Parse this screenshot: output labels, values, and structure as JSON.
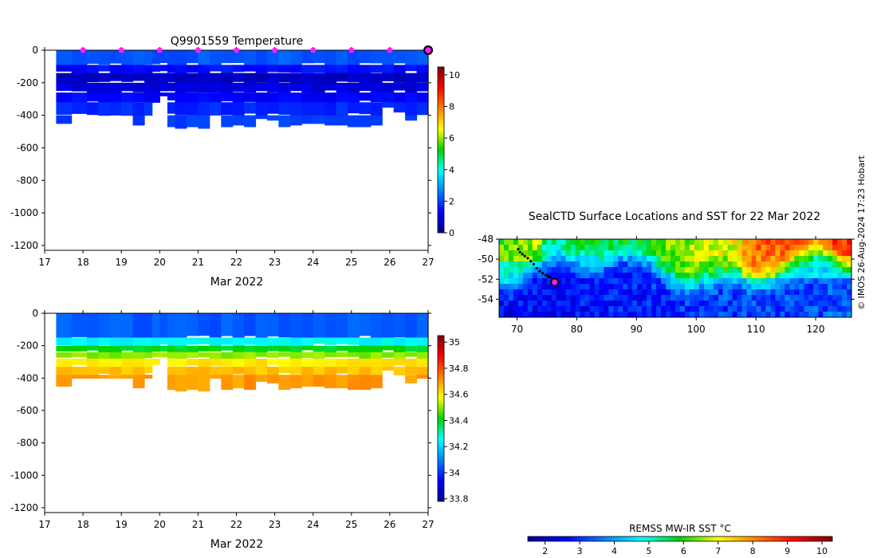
{
  "credit": "© IMOS 26-Aug-2024 17:23 Hobart",
  "profile_panels": {
    "temperature": {
      "title": "Q9901559  Temperature",
      "xlabel": "Mar 2022",
      "x_ticks": [
        "17",
        "18",
        "19",
        "20",
        "21",
        "22",
        "23",
        "24",
        "25",
        "26",
        "27"
      ],
      "y_ticks": [
        "0",
        "-200",
        "-400",
        "-600",
        "-800",
        "-1000",
        "-1200"
      ],
      "colorbar_ticks": [
        "10",
        "8",
        "6",
        "4",
        "2",
        "0"
      ],
      "colorbar_range": [
        0,
        10.5
      ],
      "surface_marker_days": [
        18,
        19,
        20,
        21,
        22,
        23,
        24,
        25,
        26
      ],
      "latest_marker_day": 27,
      "marker_color": "#ff1aff"
    },
    "salinity": {
      "xlabel": "Mar 2022",
      "x_ticks": [
        "17",
        "18",
        "19",
        "20",
        "21",
        "22",
        "23",
        "24",
        "25",
        "26",
        "27"
      ],
      "y_ticks": [
        "0",
        "-200",
        "-400",
        "-600",
        "-800",
        "-1000",
        "-1200"
      ],
      "colorbar_ticks": [
        "35",
        "34.8",
        "34.6",
        "34.4",
        "34.2",
        "34",
        "33.8"
      ],
      "colorbar_range": [
        33.78,
        35.05
      ]
    }
  },
  "map_panel": {
    "title": "SealCTD Surface Locations and SST for 22 Mar 2022",
    "lat_ticks": [
      "-48",
      "-50",
      "-52",
      "-54"
    ],
    "lon_ticks": [
      "70",
      "80",
      "90",
      "100",
      "110",
      "120"
    ],
    "current_position_color": "#ff1aff"
  },
  "sst_colorbar": {
    "label": "REMSS MW-IR SST °C",
    "ticks": [
      "2",
      "3",
      "4",
      "5",
      "6",
      "7",
      "8",
      "9",
      "10"
    ],
    "range": [
      1.5,
      10.3
    ]
  },
  "chart_data": [
    {
      "type": "heatmap",
      "title": "Q9901559  Temperature",
      "xlabel": "Mar 2022",
      "ylabel": "",
      "xlim": [
        17,
        27
      ],
      "ylim": [
        -1230,
        0
      ],
      "value_range": [
        0,
        10.5
      ],
      "value_unit": "°C",
      "profile_days": [
        17.3,
        17.7,
        18.1,
        18.4,
        18.7,
        19.0,
        19.3,
        19.6,
        19.8,
        20.0,
        20.2,
        20.4,
        20.7,
        21.0,
        21.3,
        21.6,
        21.9,
        22.2,
        22.5,
        22.8,
        23.1,
        23.4,
        23.7,
        24.0,
        24.3,
        24.6,
        24.9,
        25.2,
        25.5,
        25.8,
        26.1,
        26.4,
        26.7
      ],
      "profile_max_depths": [
        450,
        400,
        400,
        400,
        400,
        400,
        460,
        400,
        320,
        280,
        470,
        480,
        470,
        480,
        400,
        470,
        460,
        470,
        420,
        430,
        470,
        460,
        450,
        450,
        460,
        460,
        470,
        470,
        460,
        350,
        380,
        430,
        400
      ],
      "surface_value": 2.2,
      "layers": [
        {
          "depth_to": 90,
          "value": 2.2
        },
        {
          "depth_to": 140,
          "value": 1.4
        },
        {
          "depth_to": 200,
          "value": 0.6
        },
        {
          "depth_to": 260,
          "value": 0.9
        },
        {
          "depth_to": 320,
          "value": 1.3
        },
        {
          "depth_to": 400,
          "value": 1.7
        },
        {
          "depth_to": 500,
          "value": 2.0
        }
      ]
    },
    {
      "type": "heatmap",
      "title": "",
      "xlabel": "Mar 2022",
      "ylabel": "",
      "xlim": [
        17,
        27
      ],
      "ylim": [
        -1230,
        0
      ],
      "value_range": [
        33.78,
        35.05
      ],
      "value_unit": "PSU",
      "profile_days": [
        17.3,
        17.7,
        18.1,
        18.4,
        18.7,
        19.0,
        19.3,
        19.6,
        19.8,
        20.0,
        20.2,
        20.4,
        20.7,
        21.0,
        21.3,
        21.6,
        21.9,
        22.2,
        22.5,
        22.8,
        23.1,
        23.4,
        23.7,
        24.0,
        24.3,
        24.6,
        24.9,
        25.2,
        25.5,
        25.8,
        26.1,
        26.4,
        26.7
      ],
      "profile_max_depths": [
        450,
        400,
        400,
        400,
        400,
        400,
        460,
        400,
        320,
        280,
        470,
        480,
        470,
        480,
        400,
        470,
        460,
        470,
        420,
        430,
        470,
        460,
        450,
        450,
        460,
        460,
        470,
        470,
        460,
        350,
        380,
        430,
        400
      ],
      "layers": [
        {
          "depth_to": 150,
          "value": 34.05
        },
        {
          "depth_to": 200,
          "value": 34.25
        },
        {
          "depth_to": 240,
          "value": 34.4
        },
        {
          "depth_to": 280,
          "value": 34.5
        },
        {
          "depth_to": 330,
          "value": 34.6
        },
        {
          "depth_to": 380,
          "value": 34.65
        },
        {
          "depth_to": 500,
          "value": 34.7
        }
      ]
    },
    {
      "type": "heatmap",
      "title": "SealCTD Surface Locations and SST for 22 Mar 2022",
      "xlabel": "",
      "ylabel": "",
      "xlim": [
        67,
        126
      ],
      "ylim": [
        -55.8,
        -48
      ],
      "value_range": [
        1.5,
        10.3
      ],
      "value_unit": "°C",
      "description_values": {
        "south_west": 2.5,
        "north_east": 9.5,
        "front_latitude": -51
      },
      "track": {
        "lon": [
          70.2,
          70.5,
          70.9,
          71.3,
          71.8,
          72.3,
          72.8,
          73.3,
          73.8,
          74.3,
          74.8,
          75.2,
          75.6,
          76.0,
          76.3
        ],
        "lat": [
          -49.0,
          -49.3,
          -49.5,
          -49.7,
          -49.9,
          -50.2,
          -50.5,
          -50.9,
          -51.2,
          -51.4,
          -51.6,
          -51.7,
          -51.8,
          -52.0,
          -52.3
        ]
      },
      "current_position": {
        "lon": 76.3,
        "lat": -52.3
      }
    }
  ]
}
